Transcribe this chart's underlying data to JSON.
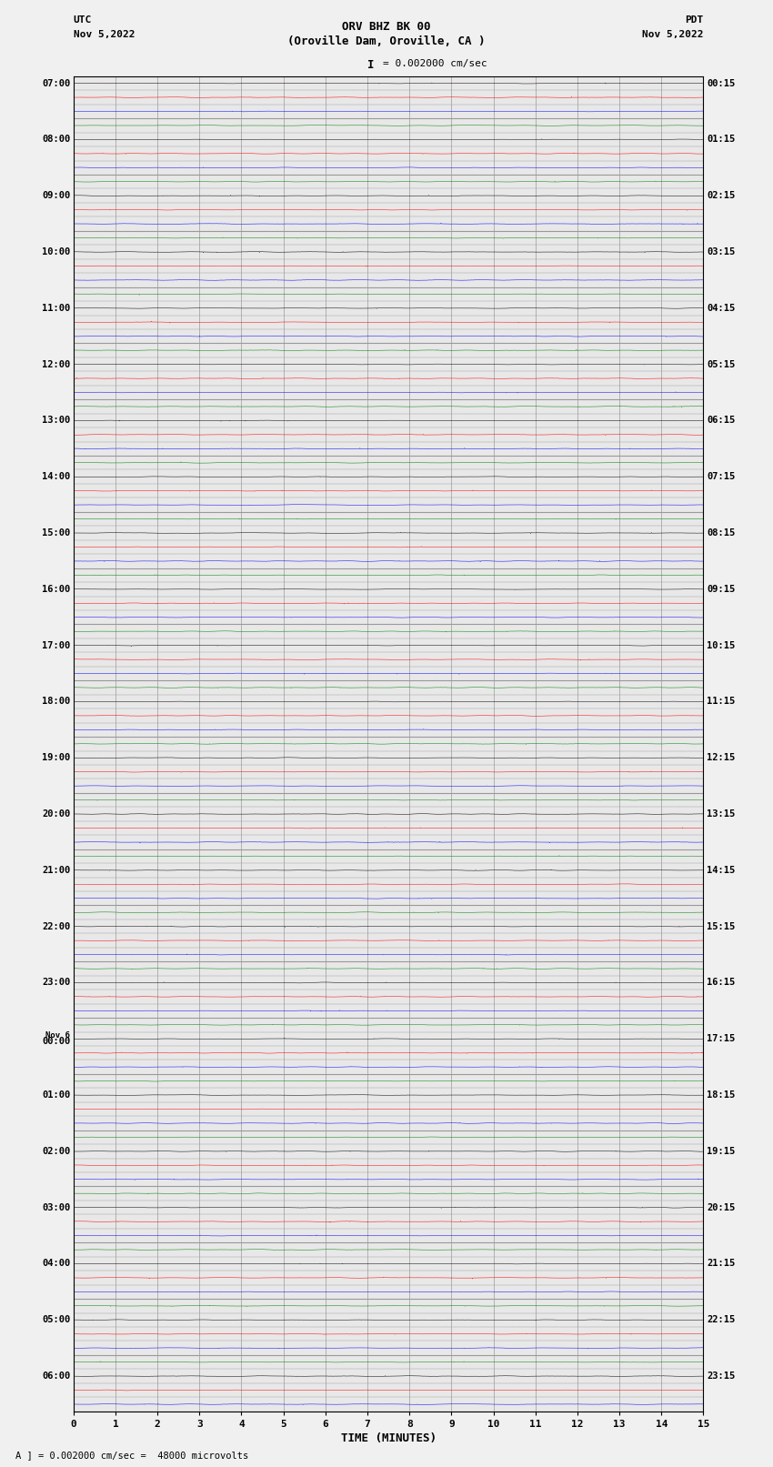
{
  "title_line1": "ORV BHZ BK 00",
  "title_line2": "(Oroville Dam, Oroville, CA )",
  "title_line3": "I = 0.002000 cm/sec",
  "left_label_top": "UTC",
  "left_label_bot": "Nov 5,2022",
  "right_label_top": "PDT",
  "right_label_bot": "Nov 5,2022",
  "bottom_xlabel": "TIME (MINUTES)",
  "bottom_note": "A ] = 0.002000 cm/sec =  48000 microvolts",
  "x_min": 0,
  "x_max": 15,
  "x_ticks": [
    0,
    1,
    2,
    3,
    4,
    5,
    6,
    7,
    8,
    9,
    10,
    11,
    12,
    13,
    14,
    15
  ],
  "num_rows": 95,
  "colors_cycle": [
    "black",
    "red",
    "blue",
    "green"
  ],
  "left_times": [
    "07:00",
    "",
    "",
    "",
    "08:00",
    "",
    "",
    "",
    "09:00",
    "",
    "",
    "",
    "10:00",
    "",
    "",
    "",
    "11:00",
    "",
    "",
    "",
    "12:00",
    "",
    "",
    "",
    "13:00",
    "",
    "",
    "",
    "14:00",
    "",
    "",
    "",
    "15:00",
    "",
    "",
    "",
    "16:00",
    "",
    "",
    "",
    "17:00",
    "",
    "",
    "",
    "18:00",
    "",
    "",
    "",
    "19:00",
    "",
    "",
    "",
    "20:00",
    "",
    "",
    "",
    "21:00",
    "",
    "",
    "",
    "22:00",
    "",
    "",
    "",
    "23:00",
    "",
    "",
    "",
    "Nov 6|00:00",
    "",
    "",
    "",
    "01:00",
    "",
    "",
    "",
    "02:00",
    "",
    "",
    "",
    "03:00",
    "",
    "",
    "",
    "04:00",
    "",
    "",
    "",
    "05:00",
    "",
    "",
    "",
    "06:00",
    "",
    ""
  ],
  "right_times": [
    "00:15",
    "",
    "",
    "",
    "01:15",
    "",
    "",
    "",
    "02:15",
    "",
    "",
    "",
    "03:15",
    "",
    "",
    "",
    "04:15",
    "",
    "",
    "",
    "05:15",
    "",
    "",
    "",
    "06:15",
    "",
    "",
    "",
    "07:15",
    "",
    "",
    "",
    "08:15",
    "",
    "",
    "",
    "09:15",
    "",
    "",
    "",
    "10:15",
    "",
    "",
    "",
    "11:15",
    "",
    "",
    "",
    "12:15",
    "",
    "",
    "",
    "13:15",
    "",
    "",
    "",
    "14:15",
    "",
    "",
    "",
    "15:15",
    "",
    "",
    "",
    "16:15",
    "",
    "",
    "",
    "17:15",
    "",
    "",
    "",
    "18:15",
    "",
    "",
    "",
    "19:15",
    "",
    "",
    "",
    "20:15",
    "",
    "",
    "",
    "21:15",
    "",
    "",
    "",
    "22:15",
    "",
    "",
    "",
    "23:15",
    "",
    ""
  ],
  "bg_color": "#f0f0f0",
  "plot_bg_color": "#e8e8e8",
  "grid_color": "#999999",
  "noise_amplitude": 0.08,
  "noise_seed": 42,
  "trace_linewidth": 0.35
}
